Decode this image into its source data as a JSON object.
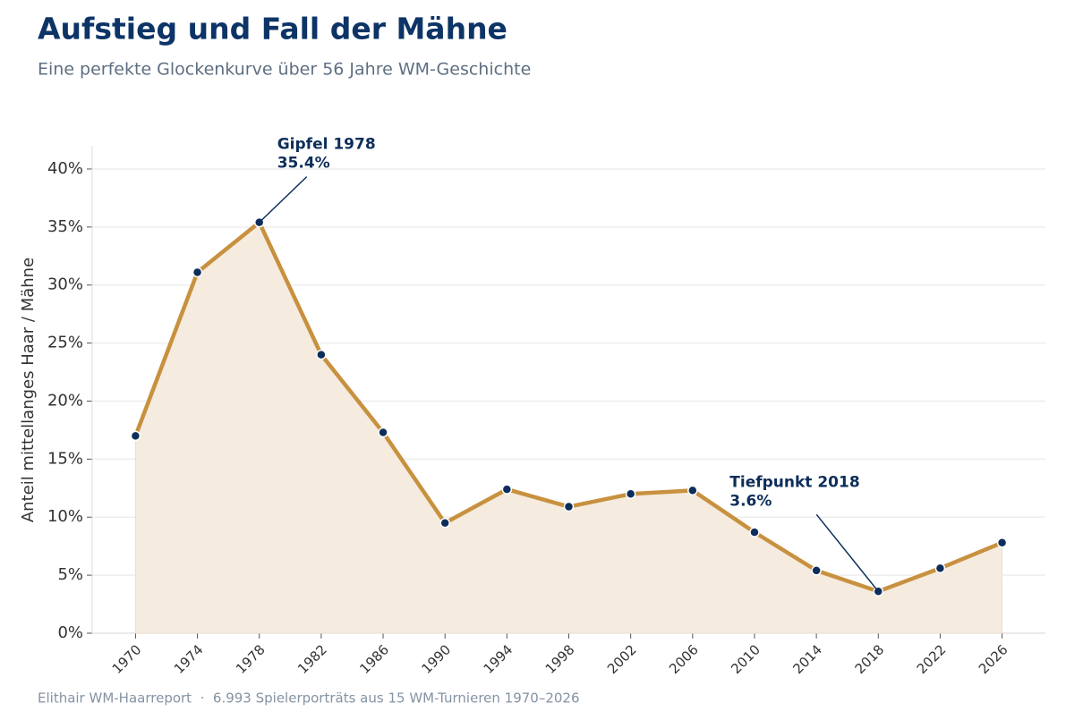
{
  "chart_data": {
    "type": "line",
    "title": "Aufstieg und Fall der Mähne",
    "subtitle": "Eine perfekte Glockenkurve über 56 Jahre WM-Geschichte",
    "y_label": "Anteil mittellanges Haar / Mähne",
    "footer": "Elithair WM-Haarreport  ·  6.993 Spielerporträts aus 15 WM-Turnieren 1970–2026",
    "x": [
      1970,
      1974,
      1978,
      1982,
      1986,
      1990,
      1994,
      1998,
      2002,
      2006,
      2010,
      2014,
      2018,
      2022,
      2026
    ],
    "series": [
      {
        "name": "Anteil mittellanges Haar",
        "color": "#c8913f",
        "fill": "#f5ebdf",
        "marker_color": "#0d2e5a",
        "values": [
          17.0,
          31.1,
          35.4,
          24.0,
          17.3,
          9.5,
          12.4,
          10.9,
          12.0,
          12.3,
          8.7,
          5.4,
          3.6,
          5.6,
          7.8
        ]
      }
    ],
    "xlim": [
      1967.2,
      2028.8
    ],
    "xticks": [
      1970,
      1974,
      1978,
      1982,
      1986,
      1990,
      1994,
      1998,
      2002,
      2006,
      2010,
      2014,
      2018,
      2022,
      2026
    ],
    "ylim": [
      0,
      42
    ],
    "yticks": [
      {
        "value": 0,
        "label": "0%"
      },
      {
        "value": 5,
        "label": "5%"
      },
      {
        "value": 10,
        "label": "10%"
      },
      {
        "value": 15,
        "label": "15%"
      },
      {
        "value": 20,
        "label": "20%"
      },
      {
        "value": 25,
        "label": "25%"
      },
      {
        "value": 30,
        "label": "30%"
      },
      {
        "value": 35,
        "label": "35%"
      },
      {
        "value": 40,
        "label": "40%"
      }
    ],
    "grid": true,
    "annotations": [
      {
        "lines": [
          "Gipfel 1978",
          "35.4%"
        ],
        "x": 1978,
        "y": 35.4
      },
      {
        "lines": [
          "Tiefpunkt 2018",
          "3.6%"
        ],
        "x": 2018,
        "y": 3.6
      }
    ]
  }
}
